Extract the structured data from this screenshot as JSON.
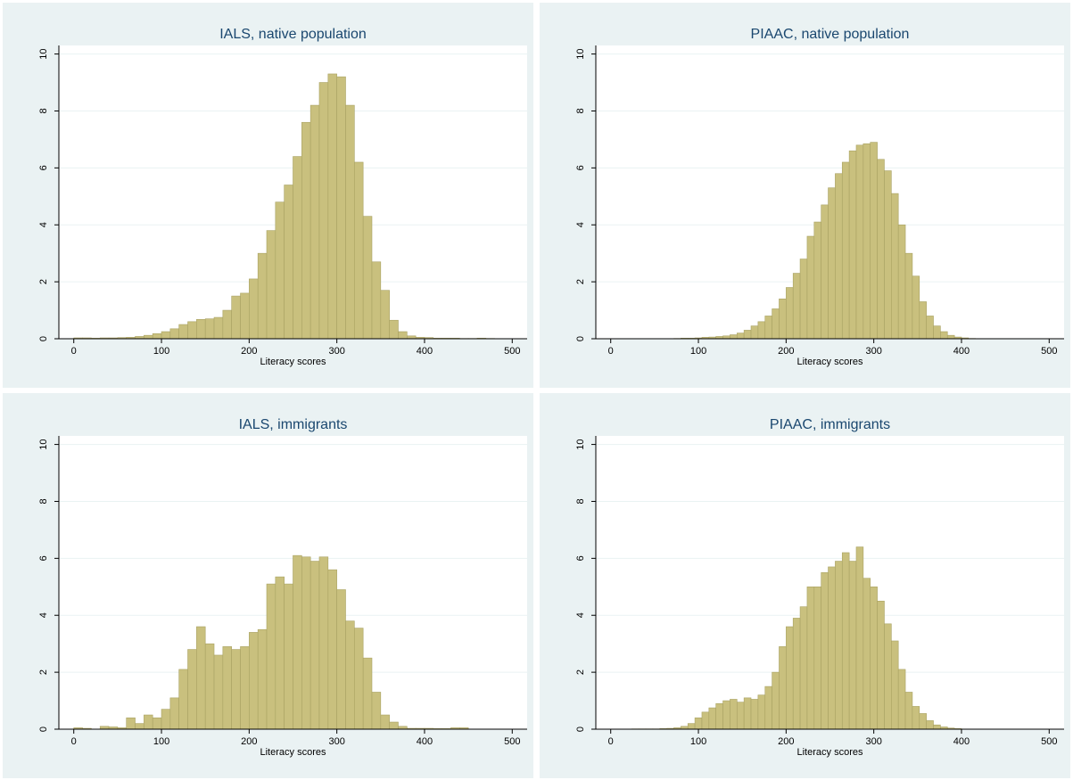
{
  "chart_data": [
    {
      "type": "histogram",
      "title": "IALS, native population",
      "xlabel": "Literacy scores",
      "bins": [
        0,
        10,
        20,
        30,
        40,
        50,
        60,
        70,
        80,
        90,
        100,
        110,
        120,
        130,
        140,
        150,
        160,
        170,
        180,
        190,
        200,
        210,
        220,
        230,
        240,
        250,
        260,
        270,
        280,
        290,
        300,
        310,
        320,
        330,
        340,
        350,
        360,
        370,
        380,
        390,
        400,
        410,
        420,
        430,
        440,
        450,
        460,
        470,
        480,
        490,
        500
      ],
      "values": [
        0.03,
        0.03,
        0.02,
        0.03,
        0.03,
        0.04,
        0.05,
        0.08,
        0.12,
        0.18,
        0.25,
        0.35,
        0.5,
        0.6,
        0.68,
        0.7,
        0.75,
        1.0,
        1.5,
        1.6,
        2.1,
        3.0,
        3.8,
        4.8,
        5.4,
        6.4,
        7.6,
        8.2,
        9.0,
        9.3,
        9.2,
        8.2,
        6.2,
        4.3,
        2.7,
        1.7,
        0.65,
        0.25,
        0.1,
        0.05,
        0.04,
        0.02,
        0.02,
        0.02,
        0.01,
        0.01,
        0.02,
        0.01,
        0,
        0
      ],
      "color": "#c9c07e",
      "xlim": [
        -17,
        517
      ],
      "ylim": [
        0,
        10.3
      ],
      "xticks": [
        0,
        100,
        200,
        300,
        400,
        500
      ],
      "yticks": [
        0,
        2,
        4,
        6,
        8,
        10
      ],
      "grid": true
    },
    {
      "type": "histogram",
      "title": "PIAAC, native population",
      "xlabel": "Literacy scores",
      "bins": [
        72,
        80,
        88,
        96,
        104,
        112,
        120,
        128,
        136,
        144,
        152,
        160,
        168,
        176,
        184,
        192,
        200,
        208,
        216,
        224,
        232,
        240,
        248,
        256,
        264,
        272,
        280,
        288,
        296,
        304,
        312,
        320,
        328,
        336,
        344,
        352,
        360,
        368,
        376,
        384,
        392,
        400,
        408,
        416
      ],
      "values": [
        0.01,
        0.02,
        0.02,
        0.03,
        0.05,
        0.06,
        0.08,
        0.1,
        0.14,
        0.2,
        0.3,
        0.45,
        0.6,
        0.8,
        1.05,
        1.4,
        1.8,
        2.3,
        2.8,
        3.6,
        4.1,
        4.7,
        5.3,
        5.8,
        6.2,
        6.6,
        6.8,
        6.85,
        6.9,
        6.3,
        5.9,
        5.1,
        4.0,
        3.0,
        2.2,
        1.3,
        0.8,
        0.45,
        0.25,
        0.12,
        0.06,
        0.03,
        0.01
      ],
      "color": "#c9c07e",
      "xlim": [
        -17,
        517
      ],
      "ylim": [
        0,
        10.3
      ],
      "xticks": [
        0,
        100,
        200,
        300,
        400,
        500
      ],
      "yticks": [
        0,
        2,
        4,
        6,
        8,
        10
      ],
      "grid": true
    },
    {
      "type": "histogram",
      "title": "IALS, immigrants",
      "xlabel": "Literacy scores",
      "bins": [
        0,
        10,
        20,
        30,
        40,
        50,
        60,
        70,
        80,
        90,
        100,
        110,
        120,
        130,
        140,
        150,
        160,
        170,
        180,
        190,
        200,
        210,
        220,
        230,
        240,
        250,
        260,
        270,
        280,
        290,
        300,
        310,
        320,
        330,
        340,
        350,
        360,
        370,
        380,
        390,
        400,
        410,
        420,
        430,
        440,
        450,
        460,
        470,
        480,
        490,
        500
      ],
      "values": [
        0.05,
        0.03,
        0,
        0.1,
        0.08,
        0.05,
        0.4,
        0.2,
        0.5,
        0.4,
        0.7,
        1.1,
        2.1,
        2.8,
        3.6,
        3.0,
        2.6,
        2.9,
        2.8,
        2.9,
        3.4,
        3.5,
        5.1,
        5.35,
        5.1,
        6.1,
        6.05,
        5.9,
        6.05,
        5.6,
        4.9,
        3.8,
        3.55,
        2.5,
        1.3,
        0.5,
        0.25,
        0.1,
        0.03,
        0.03,
        0.03,
        0.02,
        0.02,
        0.05,
        0.05,
        0,
        0,
        0,
        0,
        0
      ],
      "color": "#c9c07e",
      "xlim": [
        -17,
        517
      ],
      "ylim": [
        0,
        10.3
      ],
      "xticks": [
        0,
        100,
        200,
        300,
        400,
        500
      ],
      "yticks": [
        0,
        2,
        4,
        6,
        8,
        10
      ],
      "grid": true
    },
    {
      "type": "histogram",
      "title": "PIAAC, immigrants",
      "xlabel": "Literacy scores",
      "bins": [
        24,
        32,
        40,
        48,
        56,
        64,
        72,
        80,
        88,
        96,
        104,
        112,
        120,
        128,
        136,
        144,
        152,
        160,
        168,
        176,
        184,
        192,
        200,
        208,
        216,
        224,
        232,
        240,
        248,
        256,
        264,
        272,
        280,
        288,
        296,
        304,
        312,
        320,
        328,
        336,
        344,
        352,
        360,
        368,
        376,
        384,
        392,
        400
      ],
      "values": [
        0.01,
        0.01,
        0.01,
        0.01,
        0.02,
        0.03,
        0.05,
        0.1,
        0.2,
        0.4,
        0.6,
        0.75,
        0.9,
        1.0,
        1.05,
        0.95,
        1.1,
        1.05,
        1.2,
        1.5,
        2.0,
        2.9,
        3.6,
        3.9,
        4.3,
        5.0,
        5.0,
        5.5,
        5.7,
        5.9,
        6.2,
        5.9,
        6.4,
        5.3,
        5.0,
        4.5,
        3.7,
        3.1,
        2.1,
        1.3,
        0.8,
        0.55,
        0.3,
        0.15,
        0.08,
        0.04,
        0.02
      ],
      "color": "#c9c07e",
      "xlim": [
        -17,
        517
      ],
      "ylim": [
        0,
        10.3
      ],
      "xticks": [
        0,
        100,
        200,
        300,
        400,
        500
      ],
      "yticks": [
        0,
        2,
        4,
        6,
        8,
        10
      ],
      "grid": true
    }
  ]
}
